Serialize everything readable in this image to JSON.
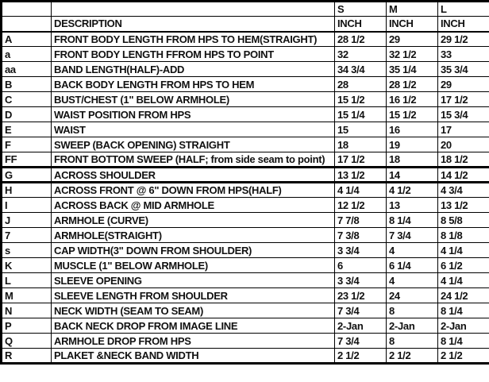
{
  "table": {
    "header": {
      "description": "DESCRIPTION",
      "unit": "INCH",
      "sizes": [
        "S",
        "M",
        "L"
      ]
    },
    "rows": [
      {
        "code": "A",
        "code_align": "l",
        "desc": "FRONT BODY LENGTH FROM HPS TO HEM(STRAIGHT)",
        "thick": false,
        "values": [
          {
            "t": "28 1/2",
            "a": "r"
          },
          {
            "t": "29",
            "a": "l"
          },
          {
            "t": "29 1/2",
            "a": "r"
          }
        ]
      },
      {
        "code": "a",
        "code_align": "l",
        "desc": "FRONT BODY LENGTH FFROM HPS TO POINT",
        "thick": false,
        "values": [
          {
            "t": "32",
            "a": "l"
          },
          {
            "t": "32 1/2",
            "a": "r"
          },
          {
            "t": "33",
            "a": "l"
          }
        ]
      },
      {
        "code": "aa",
        "code_align": "l",
        "desc": "BAND LENGTH(HALF)-ADD",
        "thick": false,
        "values": [
          {
            "t": "34 3/4",
            "a": "r"
          },
          {
            "t": "35 1/4",
            "a": "r"
          },
          {
            "t": "35 3/4",
            "a": "r"
          }
        ]
      },
      {
        "code": "B",
        "code_align": "l",
        "desc": "BACK BODY LENGTH FROM HPS TO HEM",
        "thick": false,
        "values": [
          {
            "t": "28",
            "a": "l"
          },
          {
            "t": "28 1/2",
            "a": "r"
          },
          {
            "t": "29",
            "a": "l"
          }
        ]
      },
      {
        "code": "C",
        "code_align": "l",
        "desc": "BUST/CHEST (1\" BELOW ARMHOLE)",
        "thick": false,
        "values": [
          {
            "t": "15 1/2",
            "a": "r"
          },
          {
            "t": "16 1/2",
            "a": "r"
          },
          {
            "t": "17 1/2",
            "a": "r"
          }
        ]
      },
      {
        "code": "D",
        "code_align": "l",
        "desc": "WAIST POSITION FROM HPS",
        "thick": false,
        "values": [
          {
            "t": "15 1/4",
            "a": "r"
          },
          {
            "t": "15 1/2",
            "a": "r"
          },
          {
            "t": "15 3/4",
            "a": "r"
          }
        ]
      },
      {
        "code": "E",
        "code_align": "l",
        "desc": "WAIST",
        "thick": false,
        "values": [
          {
            "t": "15",
            "a": "l"
          },
          {
            "t": "16",
            "a": "l"
          },
          {
            "t": "17",
            "a": "l"
          }
        ]
      },
      {
        "code": "F",
        "code_align": "l",
        "desc": "SWEEP (BACK OPENING) STRAIGHT",
        "thick": false,
        "values": [
          {
            "t": "18",
            "a": "l"
          },
          {
            "t": "19",
            "a": "l"
          },
          {
            "t": "20",
            "a": "l"
          }
        ]
      },
      {
        "code": "FF",
        "code_align": "l",
        "desc": "FRONT BOTTOM SWEEP (HALF; from side seam to point)",
        "thick": false,
        "values": [
          {
            "t": "17 1/2",
            "a": "r"
          },
          {
            "t": "18",
            "a": "l"
          },
          {
            "t": "18 1/2",
            "a": "r"
          }
        ]
      },
      {
        "code": "G",
        "code_align": "l",
        "desc": "ACROSS SHOULDER",
        "thick": true,
        "values": [
          {
            "t": "13 1/2",
            "a": "r"
          },
          {
            "t": "14",
            "a": "l"
          },
          {
            "t": "14 1/2",
            "a": "r"
          }
        ]
      },
      {
        "code": "H",
        "code_align": "l",
        "desc": "ACROSS FRONT @ 6\" DOWN FROM HPS(HALF)",
        "thick": false,
        "values": [
          {
            "t": "4 1/4",
            "a": "r"
          },
          {
            "t": "4 1/2",
            "a": "r"
          },
          {
            "t": "4 3/4",
            "a": "r"
          }
        ]
      },
      {
        "code": "I",
        "code_align": "l",
        "desc": "ACROSS BACK @ MID ARMHOLE",
        "thick": false,
        "values": [
          {
            "t": "12 1/2",
            "a": "r"
          },
          {
            "t": "13",
            "a": "l"
          },
          {
            "t": "13 1/2",
            "a": "r"
          }
        ]
      },
      {
        "code": "J",
        "code_align": "l",
        "desc": "ARMHOLE (CURVE)",
        "thick": false,
        "values": [
          {
            "t": "7 7/8",
            "a": "r"
          },
          {
            "t": "8 1/4",
            "a": "r"
          },
          {
            "t": "8 5/8",
            "a": "r"
          }
        ]
      },
      {
        "code": "7",
        "code_align": "r",
        "desc": "ARMHOLE(STRAIGHT)",
        "thick": false,
        "values": [
          {
            "t": "7 3/8",
            "a": "r"
          },
          {
            "t": "7 3/4",
            "a": "r"
          },
          {
            "t": "8 1/8",
            "a": "r"
          }
        ]
      },
      {
        "code": "s",
        "code_align": "l",
        "desc": "CAP  WIDTH(3\" DOWN FROM SHOULDER)",
        "thick": false,
        "values": [
          {
            "t": "3 3/4",
            "a": "r"
          },
          {
            "t": "4",
            "a": "l"
          },
          {
            "t": "4 1/4",
            "a": "r"
          }
        ]
      },
      {
        "code": "K",
        "code_align": "l",
        "desc": "MUSCLE (1\" BELOW ARMHOLE)",
        "thick": false,
        "values": [
          {
            "t": "6",
            "a": "l"
          },
          {
            "t": "6 1/4",
            "a": "r"
          },
          {
            "t": "6 1/2",
            "a": "r"
          }
        ]
      },
      {
        "code": "L",
        "code_align": "l",
        "desc": "SLEEVE OPENING",
        "thick": false,
        "values": [
          {
            "t": "3 3/4",
            "a": "r"
          },
          {
            "t": "4",
            "a": "l"
          },
          {
            "t": "4 1/4",
            "a": "r"
          }
        ]
      },
      {
        "code": "M",
        "code_align": "l",
        "desc": "SLEEVE LENGTH FROM SHOULDER",
        "thick": false,
        "values": [
          {
            "t": "23 1/2",
            "a": "r"
          },
          {
            "t": "24",
            "a": "l"
          },
          {
            "t": "24 1/2",
            "a": "r"
          }
        ]
      },
      {
        "code": "N",
        "code_align": "l",
        "desc": "NECK WIDTH (SEAM TO SEAM)",
        "thick": false,
        "values": [
          {
            "t": "7 3/4",
            "a": "r"
          },
          {
            "t": "8",
            "a": "l"
          },
          {
            "t": "8 1/4",
            "a": "r"
          }
        ]
      },
      {
        "code": "P",
        "code_align": "l",
        "desc": "BACK NECK DROP FROM IMAGE LINE",
        "thick": false,
        "values": [
          {
            "t": "2-Jan",
            "a": "r"
          },
          {
            "t": "2-Jan",
            "a": "r"
          },
          {
            "t": "2-Jan",
            "a": "r"
          }
        ]
      },
      {
        "code": "Q",
        "code_align": "l",
        "desc": "ARMHOLE DROP FROM HPS",
        "thick": false,
        "values": [
          {
            "t": "7 3/4",
            "a": "r"
          },
          {
            "t": "8",
            "a": "l"
          },
          {
            "t": "8 1/4",
            "a": "r"
          }
        ]
      },
      {
        "code": "R",
        "code_align": "l",
        "desc": "PLAKET &NECK BAND WIDTH",
        "thick": false,
        "values": [
          {
            "t": "2 1/2",
            "a": "r"
          },
          {
            "t": "2 1/2",
            "a": "r"
          },
          {
            "t": "2 1/2",
            "a": "r"
          }
        ]
      }
    ]
  }
}
